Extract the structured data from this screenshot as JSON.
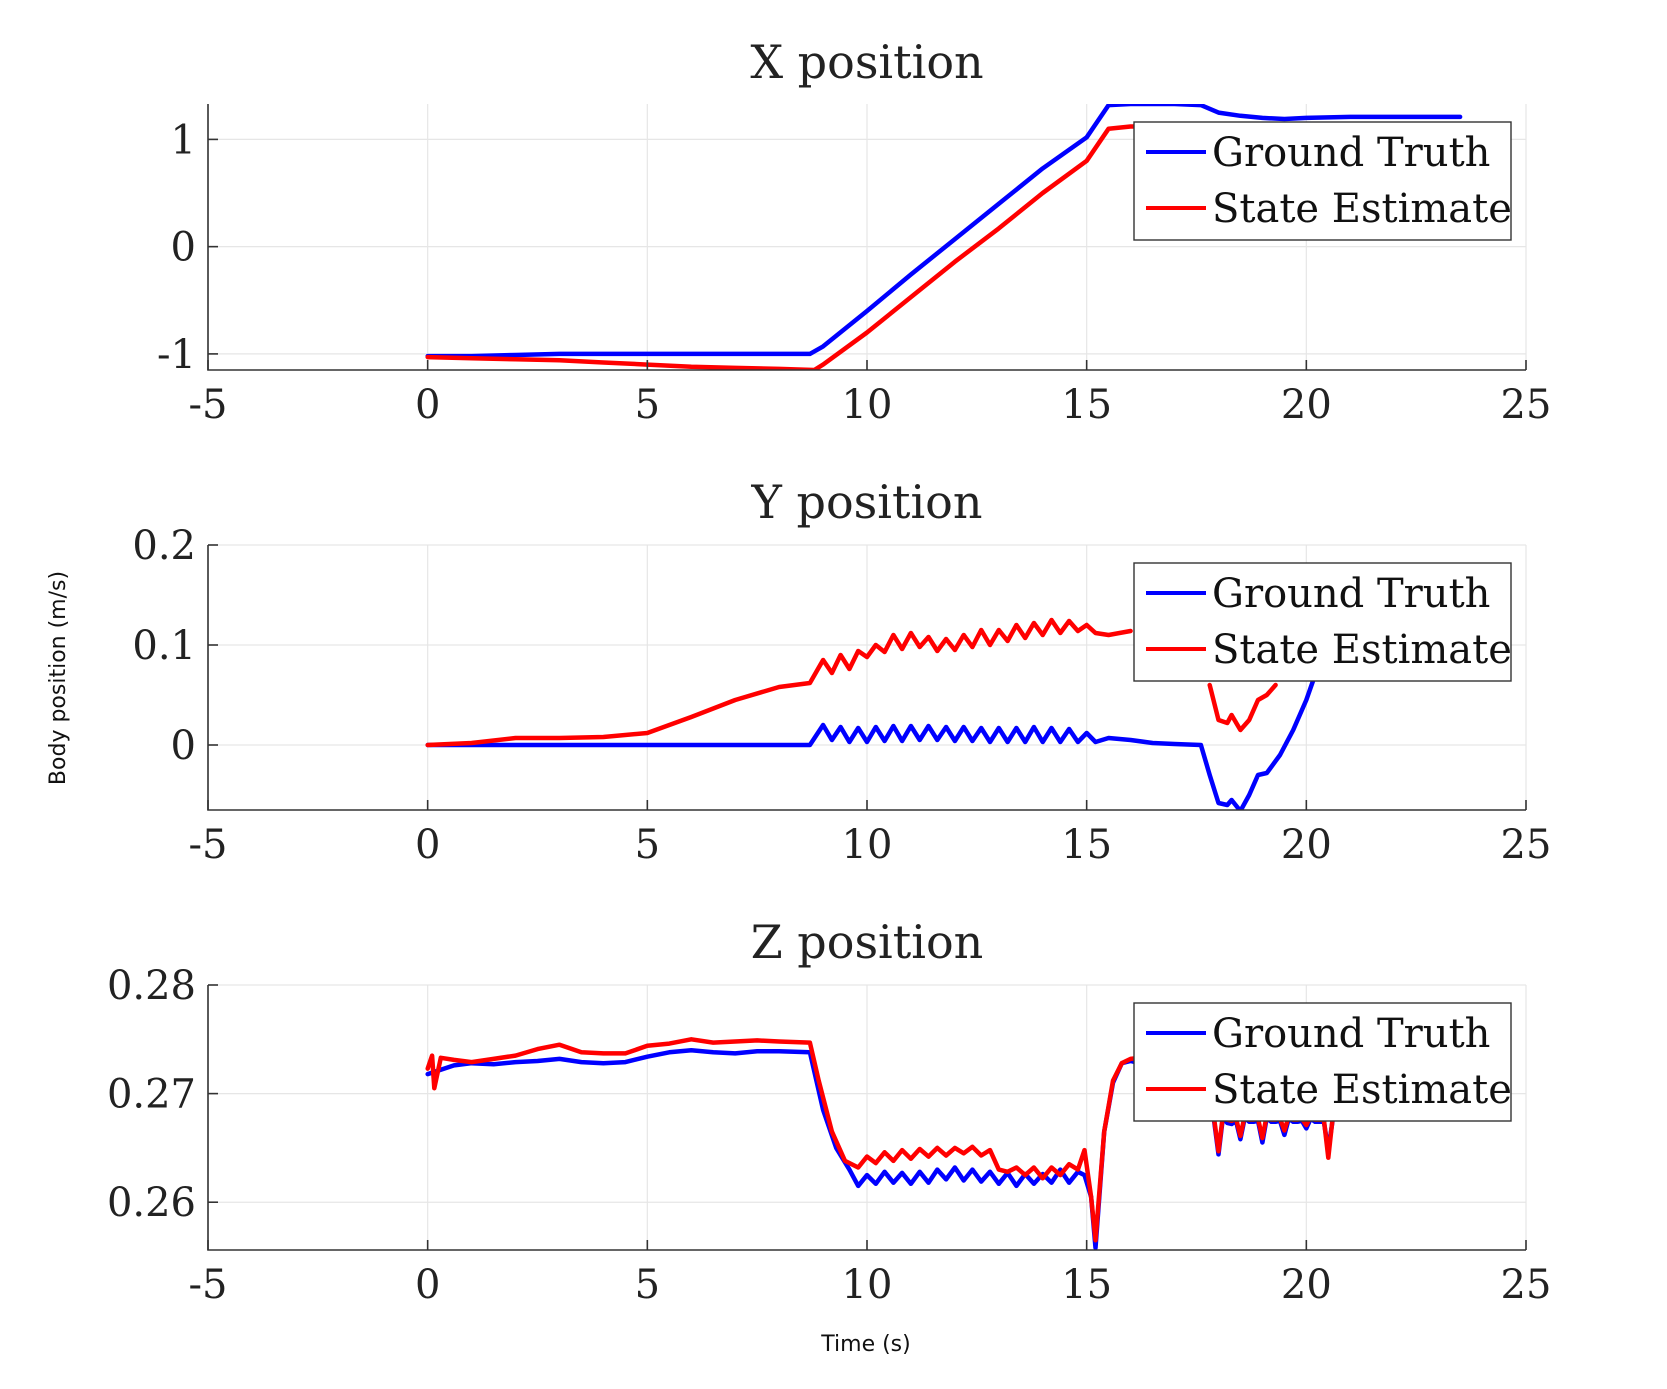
{
  "figure": {
    "ylabel": "Body position (m/s)",
    "xlabel": "Time (s)"
  },
  "colors": {
    "ground_truth": "#0000ff",
    "state_estimate": "#ff0000"
  },
  "chart_data": [
    {
      "type": "line",
      "title": "X position",
      "xlim": [
        -5,
        25
      ],
      "ylim": [
        -1.15,
        1.33
      ],
      "xticks": [
        -5,
        0,
        5,
        10,
        15,
        20,
        25
      ],
      "yticks": [
        -1,
        0,
        1
      ],
      "ytick_labels": [
        "-1",
        "0",
        "1"
      ],
      "grid": true,
      "legend": "top-right",
      "series": [
        {
          "name": "Ground Truth",
          "color": "#0000ff",
          "x": [
            0,
            1,
            2,
            3,
            4,
            5,
            6,
            7,
            8,
            8.7,
            9,
            10,
            11,
            12,
            13,
            14,
            15,
            15.5,
            16,
            17,
            17.6,
            18,
            18.5,
            19,
            19.5,
            20,
            21,
            22,
            23.5
          ],
          "y": [
            -1.02,
            -1.02,
            -1.01,
            -1.0,
            -1.0,
            -1.0,
            -1.0,
            -1.0,
            -1.0,
            -1.0,
            -0.93,
            -0.6,
            -0.26,
            0.07,
            0.4,
            0.73,
            1.02,
            1.32,
            1.33,
            1.33,
            1.32,
            1.25,
            1.22,
            1.2,
            1.19,
            1.2,
            1.21,
            1.21,
            1.21
          ]
        },
        {
          "name": "State Estimate",
          "color": "#ff0000",
          "x": [
            0,
            1,
            2,
            3,
            4,
            5,
            6,
            7,
            8,
            8.8,
            9,
            10,
            11,
            12,
            13,
            14,
            15,
            15.5,
            16,
            17,
            18,
            19
          ],
          "y": [
            -1.03,
            -1.04,
            -1.05,
            -1.06,
            -1.08,
            -1.1,
            -1.12,
            -1.13,
            -1.14,
            -1.15,
            -1.1,
            -0.8,
            -0.47,
            -0.14,
            0.17,
            0.5,
            0.8,
            1.1,
            1.12,
            1.12,
            1.12,
            1.12
          ]
        }
      ]
    },
    {
      "type": "line",
      "title": "Y position",
      "xlim": [
        -5,
        25
      ],
      "ylim": [
        -0.065,
        0.2
      ],
      "xticks": [
        -5,
        0,
        5,
        10,
        15,
        20,
        25
      ],
      "yticks": [
        0,
        0.1,
        0.2
      ],
      "ytick_labels": [
        "0",
        "0.1",
        "0.2"
      ],
      "grid": true,
      "legend": "top-right",
      "series": [
        {
          "name": "Ground Truth",
          "color": "#0000ff",
          "x": [
            0,
            2,
            4,
            6,
            8,
            8.7,
            9.0,
            9.2,
            9.4,
            9.6,
            9.8,
            10.0,
            10.2,
            10.4,
            10.6,
            10.8,
            11.0,
            11.2,
            11.4,
            11.6,
            11.8,
            12.0,
            12.2,
            12.4,
            12.6,
            12.8,
            13.0,
            13.2,
            13.4,
            13.6,
            13.8,
            14.0,
            14.2,
            14.4,
            14.6,
            14.8,
            15.0,
            15.2,
            15.5,
            16.0,
            16.5,
            17.0,
            17.6,
            17.8,
            18.0,
            18.2,
            18.3,
            18.5,
            18.7,
            18.9,
            19.1,
            19.4,
            19.7,
            20.0,
            20.2
          ],
          "y": [
            0,
            0,
            0,
            0,
            0,
            0,
            0.02,
            0.005,
            0.018,
            0.003,
            0.017,
            0.003,
            0.018,
            0.004,
            0.019,
            0.004,
            0.019,
            0.005,
            0.019,
            0.005,
            0.018,
            0.004,
            0.018,
            0.004,
            0.017,
            0.003,
            0.017,
            0.003,
            0.017,
            0.003,
            0.018,
            0.003,
            0.017,
            0.003,
            0.016,
            0.003,
            0.012,
            0.003,
            0.007,
            0.005,
            0.002,
            0.001,
            0.0,
            -0.03,
            -0.058,
            -0.06,
            -0.055,
            -0.066,
            -0.05,
            -0.03,
            -0.028,
            -0.01,
            0.015,
            0.045,
            0.07
          ]
        },
        {
          "name": "State Estimate",
          "color": "#ff0000",
          "x": [
            0,
            1,
            2,
            3,
            4,
            5,
            6,
            7,
            8,
            8.7,
            9.0,
            9.2,
            9.4,
            9.6,
            9.8,
            10.0,
            10.2,
            10.4,
            10.6,
            10.8,
            11.0,
            11.2,
            11.4,
            11.6,
            11.8,
            12.0,
            12.2,
            12.4,
            12.6,
            12.8,
            13.0,
            13.2,
            13.4,
            13.6,
            13.8,
            14.0,
            14.2,
            14.4,
            14.6,
            14.8,
            15.0,
            15.2,
            15.5,
            16.0
          ],
          "y": [
            0,
            0.002,
            0.007,
            0.007,
            0.008,
            0.012,
            0.028,
            0.045,
            0.058,
            0.062,
            0.085,
            0.072,
            0.09,
            0.076,
            0.094,
            0.088,
            0.1,
            0.093,
            0.11,
            0.096,
            0.112,
            0.098,
            0.108,
            0.094,
            0.106,
            0.095,
            0.11,
            0.098,
            0.115,
            0.1,
            0.115,
            0.104,
            0.12,
            0.107,
            0.122,
            0.11,
            0.125,
            0.112,
            0.124,
            0.114,
            0.12,
            0.112,
            0.11,
            0.114
          ]
        },
        {
          "name": "State Estimate",
          "color": "#ff0000",
          "x": [
            17.8,
            18.0,
            18.2,
            18.3,
            18.5,
            18.7,
            18.9,
            19.1,
            19.3
          ],
          "y": [
            0.06,
            0.025,
            0.022,
            0.03,
            0.015,
            0.025,
            0.045,
            0.05,
            0.06
          ]
        }
      ]
    },
    {
      "type": "line",
      "title": "Z position",
      "xlim": [
        -5,
        25
      ],
      "ylim": [
        0.2556,
        0.28
      ],
      "xticks": [
        -5,
        0,
        5,
        10,
        15,
        20,
        25
      ],
      "yticks": [
        0.26,
        0.27,
        0.28
      ],
      "ytick_labels": [
        "0.26",
        "0.27",
        "0.28"
      ],
      "grid": true,
      "legend": "top-right",
      "series": [
        {
          "name": "Ground Truth",
          "color": "#0000ff",
          "x": [
            0,
            0.3,
            0.6,
            1,
            1.5,
            2,
            2.5,
            3,
            3.5,
            4,
            4.5,
            5,
            5.5,
            6,
            6.5,
            7,
            7.5,
            8,
            8.7,
            9.0,
            9.3,
            9.6,
            9.8,
            10.0,
            10.2,
            10.4,
            10.6,
            10.8,
            11.0,
            11.2,
            11.4,
            11.6,
            11.8,
            12.0,
            12.2,
            12.4,
            12.6,
            12.8,
            13.0,
            13.2,
            13.4,
            13.6,
            13.8,
            14.0,
            14.2,
            14.4,
            14.6,
            14.8,
            14.95,
            15.1,
            15.2,
            15.4,
            15.6,
            15.8,
            16.0,
            16.2
          ],
          "y": [
            0.2718,
            0.2722,
            0.2726,
            0.2728,
            0.2727,
            0.2729,
            0.273,
            0.2732,
            0.2729,
            0.2728,
            0.2729,
            0.2734,
            0.2738,
            0.274,
            0.2738,
            0.2737,
            0.2739,
            0.2739,
            0.2738,
            0.2685,
            0.265,
            0.263,
            0.2615,
            0.2625,
            0.2617,
            0.2628,
            0.2618,
            0.2627,
            0.2617,
            0.2628,
            0.2618,
            0.263,
            0.2621,
            0.2632,
            0.262,
            0.263,
            0.2619,
            0.2628,
            0.2617,
            0.2627,
            0.2615,
            0.2626,
            0.2617,
            0.2626,
            0.2618,
            0.263,
            0.2618,
            0.2628,
            0.2625,
            0.2605,
            0.2558,
            0.2665,
            0.271,
            0.2728,
            0.273,
            0.2728
          ]
        },
        {
          "name": "State Estimate",
          "color": "#ff0000",
          "x": [
            0,
            0.1,
            0.15,
            0.3,
            0.6,
            1,
            1.5,
            2,
            2.5,
            3,
            3.5,
            4,
            4.5,
            5,
            5.5,
            6,
            6.5,
            7,
            7.5,
            8,
            8.7,
            8.9,
            9.2,
            9.5,
            9.8,
            10.0,
            10.2,
            10.4,
            10.6,
            10.8,
            11.0,
            11.2,
            11.4,
            11.6,
            11.8,
            12.0,
            12.2,
            12.4,
            12.6,
            12.8,
            13.0,
            13.2,
            13.4,
            13.6,
            13.8,
            14.0,
            14.2,
            14.4,
            14.6,
            14.8,
            14.95,
            15.1,
            15.2,
            15.4,
            15.6,
            15.8,
            16.0,
            16.2
          ],
          "y": [
            0.2723,
            0.2735,
            0.2705,
            0.2733,
            0.2731,
            0.2729,
            0.2732,
            0.2735,
            0.2741,
            0.2745,
            0.2738,
            0.2737,
            0.2737,
            0.2744,
            0.2746,
            0.275,
            0.2747,
            0.2748,
            0.2749,
            0.2748,
            0.2747,
            0.2712,
            0.2665,
            0.2638,
            0.2632,
            0.2642,
            0.2636,
            0.2646,
            0.2638,
            0.2648,
            0.264,
            0.2649,
            0.2642,
            0.265,
            0.2643,
            0.265,
            0.2645,
            0.2651,
            0.2643,
            0.2648,
            0.263,
            0.2628,
            0.2632,
            0.2625,
            0.2632,
            0.2622,
            0.2632,
            0.2625,
            0.2635,
            0.263,
            0.2648,
            0.2605,
            0.2565,
            0.2665,
            0.2712,
            0.2728,
            0.2732,
            0.2733
          ]
        },
        {
          "name": "Ground Truth",
          "color": "#0000ff",
          "x": [
            17.9,
            18.0,
            18.1,
            18.2,
            18.3,
            18.4,
            18.5,
            18.6,
            18.7,
            18.8,
            18.9,
            19.0,
            19.1,
            19.2,
            19.3,
            19.4,
            19.5,
            19.6,
            19.7,
            19.8,
            19.9,
            20.0,
            20.1,
            20.2,
            20.3,
            20.4,
            20.5,
            20.6
          ],
          "y": [
            0.2675,
            0.2644,
            0.2678,
            0.2673,
            0.2672,
            0.2675,
            0.2658,
            0.2678,
            0.2674,
            0.2674,
            0.2675,
            0.2655,
            0.2678,
            0.2674,
            0.2674,
            0.2675,
            0.2662,
            0.2677,
            0.2674,
            0.2674,
            0.2675,
            0.2668,
            0.2677,
            0.2674,
            0.2674,
            0.2674,
            0.2648,
            0.2676
          ]
        },
        {
          "name": "State Estimate",
          "color": "#ff0000",
          "x": [
            17.9,
            18.0,
            18.1,
            18.2,
            18.3,
            18.4,
            18.5,
            18.6,
            18.7,
            18.8,
            18.9,
            19.0,
            19.1,
            19.2,
            19.3,
            19.4,
            19.5,
            19.6,
            19.7,
            19.8,
            19.9,
            20.0,
            20.1,
            20.2,
            20.3,
            20.4,
            20.5,
            20.6
          ],
          "y": [
            0.2677,
            0.2647,
            0.268,
            0.2676,
            0.2675,
            0.2677,
            0.2661,
            0.268,
            0.2676,
            0.2676,
            0.2677,
            0.2659,
            0.268,
            0.2676,
            0.2676,
            0.2677,
            0.2666,
            0.2679,
            0.2676,
            0.2676,
            0.2677,
            0.2671,
            0.2679,
            0.2676,
            0.2676,
            0.2676,
            0.2641,
            0.2678
          ]
        }
      ]
    }
  ]
}
